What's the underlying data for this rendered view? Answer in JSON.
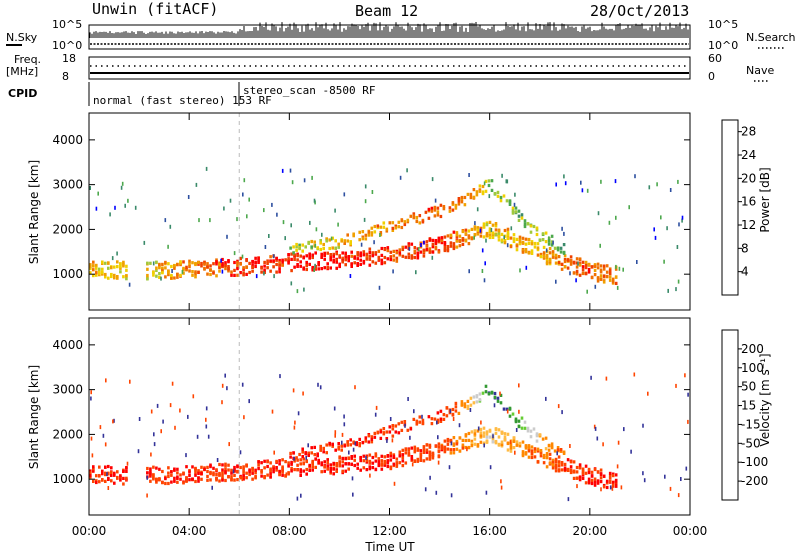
{
  "header": {
    "station": "Unwin (fitACF)",
    "beam": "Beam 12",
    "date": "28/Oct/2013"
  },
  "top_panels": {
    "nsky_label": "N.Sky",
    "nsky_ticks": [
      "10^5",
      "10^0"
    ],
    "nsearch_label": "N.Search",
    "nsearch_ticks": [
      "10^5",
      "10^0"
    ],
    "freq_label_1": "Freq.",
    "freq_label_2": "[MHz]",
    "freq_ticks": [
      "18",
      "8"
    ],
    "nave_label": "Nave",
    "nave_ticks": [
      "60",
      "0"
    ],
    "cpid_label": "CPID",
    "cpid_modes": [
      {
        "label": "normal (fast stereo) 153 RF",
        "start_hour": 0
      },
      {
        "label": "stereo_scan -8500 RF",
        "start_hour": 6
      }
    ]
  },
  "x_axis": {
    "label": "Time UT",
    "ticks": [
      "00:00",
      "04:00",
      "08:00",
      "12:00",
      "16:00",
      "20:00",
      "00:00"
    ]
  },
  "colors": {
    "power": [
      "#0000ff",
      "#2d4fa0",
      "#3a8a6a",
      "#4ca84c",
      "#a0c83c",
      "#f0d000",
      "#f0a000",
      "#f07000",
      "#f04000",
      "#ff0000"
    ],
    "velocity": [
      "#ff0000",
      "#ff4400",
      "#ff8800",
      "#ffbb44",
      "#cccccc",
      "#cccccc",
      "#66cc33",
      "#339933",
      "#333399",
      "#0000ff"
    ]
  },
  "chart_data": [
    {
      "type": "heatmap",
      "title": "",
      "quantity": "Power",
      "xlabel": "Time UT",
      "ylabel": "Slant Range [km]",
      "y_ticks": [
        "1000",
        "2000",
        "3000",
        "4000"
      ],
      "xlim_hours": [
        0,
        24
      ],
      "ylim_km": [
        200,
        4600
      ],
      "colorbar_label": "Power [dB]",
      "colorbar_ticks": [
        "4",
        "8",
        "12",
        "16",
        "20",
        "24",
        "28"
      ],
      "colorbar_range": [
        0,
        30
      ],
      "echo_bands": [
        {
          "name": "main",
          "points": [
            [
              0,
              1150,
              18
            ],
            [
              2,
              1100,
              16
            ],
            [
              4,
              1150,
              22
            ],
            [
              6,
              1200,
              26
            ],
            [
              8,
              1300,
              28
            ],
            [
              10,
              1350,
              28
            ],
            [
              12,
              1450,
              26
            ],
            [
              14,
              1700,
              26
            ],
            [
              16,
              2050,
              18
            ],
            [
              18,
              1500,
              20
            ],
            [
              20,
              1100,
              24
            ],
            [
              21,
              1000,
              22
            ]
          ]
        },
        {
          "name": "upper",
          "points": [
            [
              8,
              1600,
              14
            ],
            [
              10,
              1750,
              18
            ],
            [
              12,
              2100,
              22
            ],
            [
              14,
              2450,
              24
            ],
            [
              15,
              2700,
              22
            ],
            [
              16,
              3050,
              14
            ],
            [
              17,
              2400,
              12
            ],
            [
              18,
              1900,
              14
            ],
            [
              19,
              1600,
              12
            ]
          ]
        }
      ]
    },
    {
      "type": "heatmap",
      "title": "",
      "quantity": "Velocity",
      "xlabel": "Time UT",
      "ylabel": "Slant Range [km]",
      "y_ticks": [
        "1000",
        "2000",
        "3000",
        "4000"
      ],
      "xlim_hours": [
        0,
        24
      ],
      "ylim_km": [
        200,
        4600
      ],
      "colorbar_label": "Velocity [m s⁻¹]",
      "colorbar_ticks": [
        "200",
        "100",
        "50",
        "15",
        "-15",
        "-50",
        "-100",
        "-200"
      ],
      "colorbar_range": [
        -250,
        250
      ],
      "echo_bands": [
        {
          "name": "main",
          "points": [
            [
              0,
              1150,
              -200
            ],
            [
              2,
              1100,
              -200
            ],
            [
              4,
              1150,
              -200
            ],
            [
              6,
              1200,
              -200
            ],
            [
              8,
              1300,
              -200
            ],
            [
              10,
              1350,
              -200
            ],
            [
              12,
              1450,
              -200
            ],
            [
              14,
              1700,
              -180
            ],
            [
              16,
              2050,
              -60
            ],
            [
              18,
              1500,
              -150
            ],
            [
              20,
              1100,
              -200
            ],
            [
              21,
              1000,
              -200
            ]
          ]
        },
        {
          "name": "upper",
          "points": [
            [
              8,
              1600,
              -200
            ],
            [
              10,
              1750,
              -200
            ],
            [
              12,
              2100,
              -200
            ],
            [
              14,
              2450,
              -180
            ],
            [
              15,
              2700,
              -120
            ],
            [
              16,
              3050,
              150
            ],
            [
              17,
              2400,
              120
            ],
            [
              18,
              1900,
              -100
            ],
            [
              19,
              1600,
              -150
            ]
          ]
        }
      ]
    }
  ]
}
